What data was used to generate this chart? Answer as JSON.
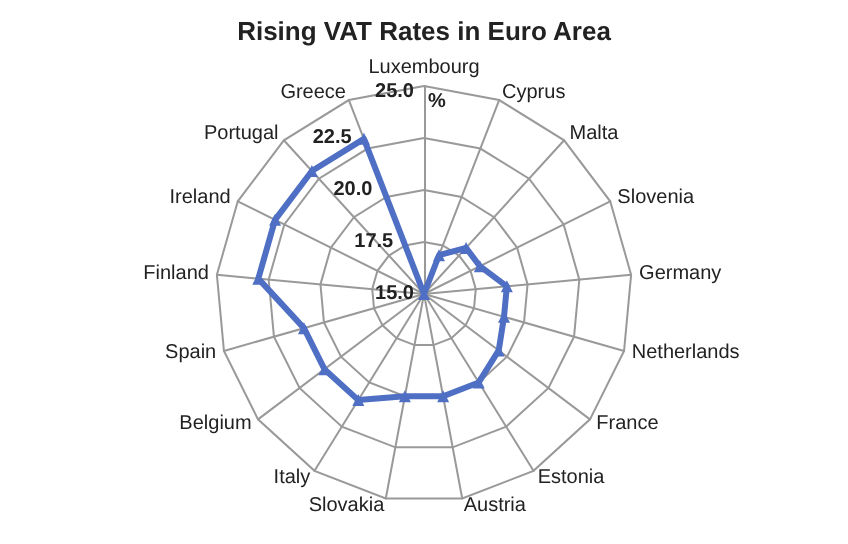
{
  "chart_data": {
    "type": "radar",
    "title": "Rising VAT Rates in Euro Area",
    "ylabel": "%",
    "categories": [
      "Luxembourg",
      "Cyprus",
      "Malta",
      "Slovenia",
      "Germany",
      "Netherlands",
      "France",
      "Estonia",
      "Austria",
      "Slovakia",
      "Italy",
      "Belgium",
      "Spain",
      "Finland",
      "Ireland",
      "Portugal",
      "Greece"
    ],
    "series": [
      {
        "color": "#4f6fc4",
        "values": [
          15,
          17,
          18,
          18,
          19,
          19,
          19.5,
          20,
          20,
          20,
          21,
          21,
          21,
          23,
          23,
          23,
          23
        ]
      }
    ],
    "ylim": [
      15,
      25
    ],
    "yticks": [
      {
        "value": 15,
        "label": "15.0"
      },
      {
        "value": 17.5,
        "label": "17.5"
      },
      {
        "value": 20,
        "label": "20.0"
      },
      {
        "value": 22.5,
        "label": "22.5"
      },
      {
        "value": 25,
        "label": "25.0"
      }
    ],
    "grid": true,
    "marker": "triangle",
    "line_style": "solid"
  }
}
